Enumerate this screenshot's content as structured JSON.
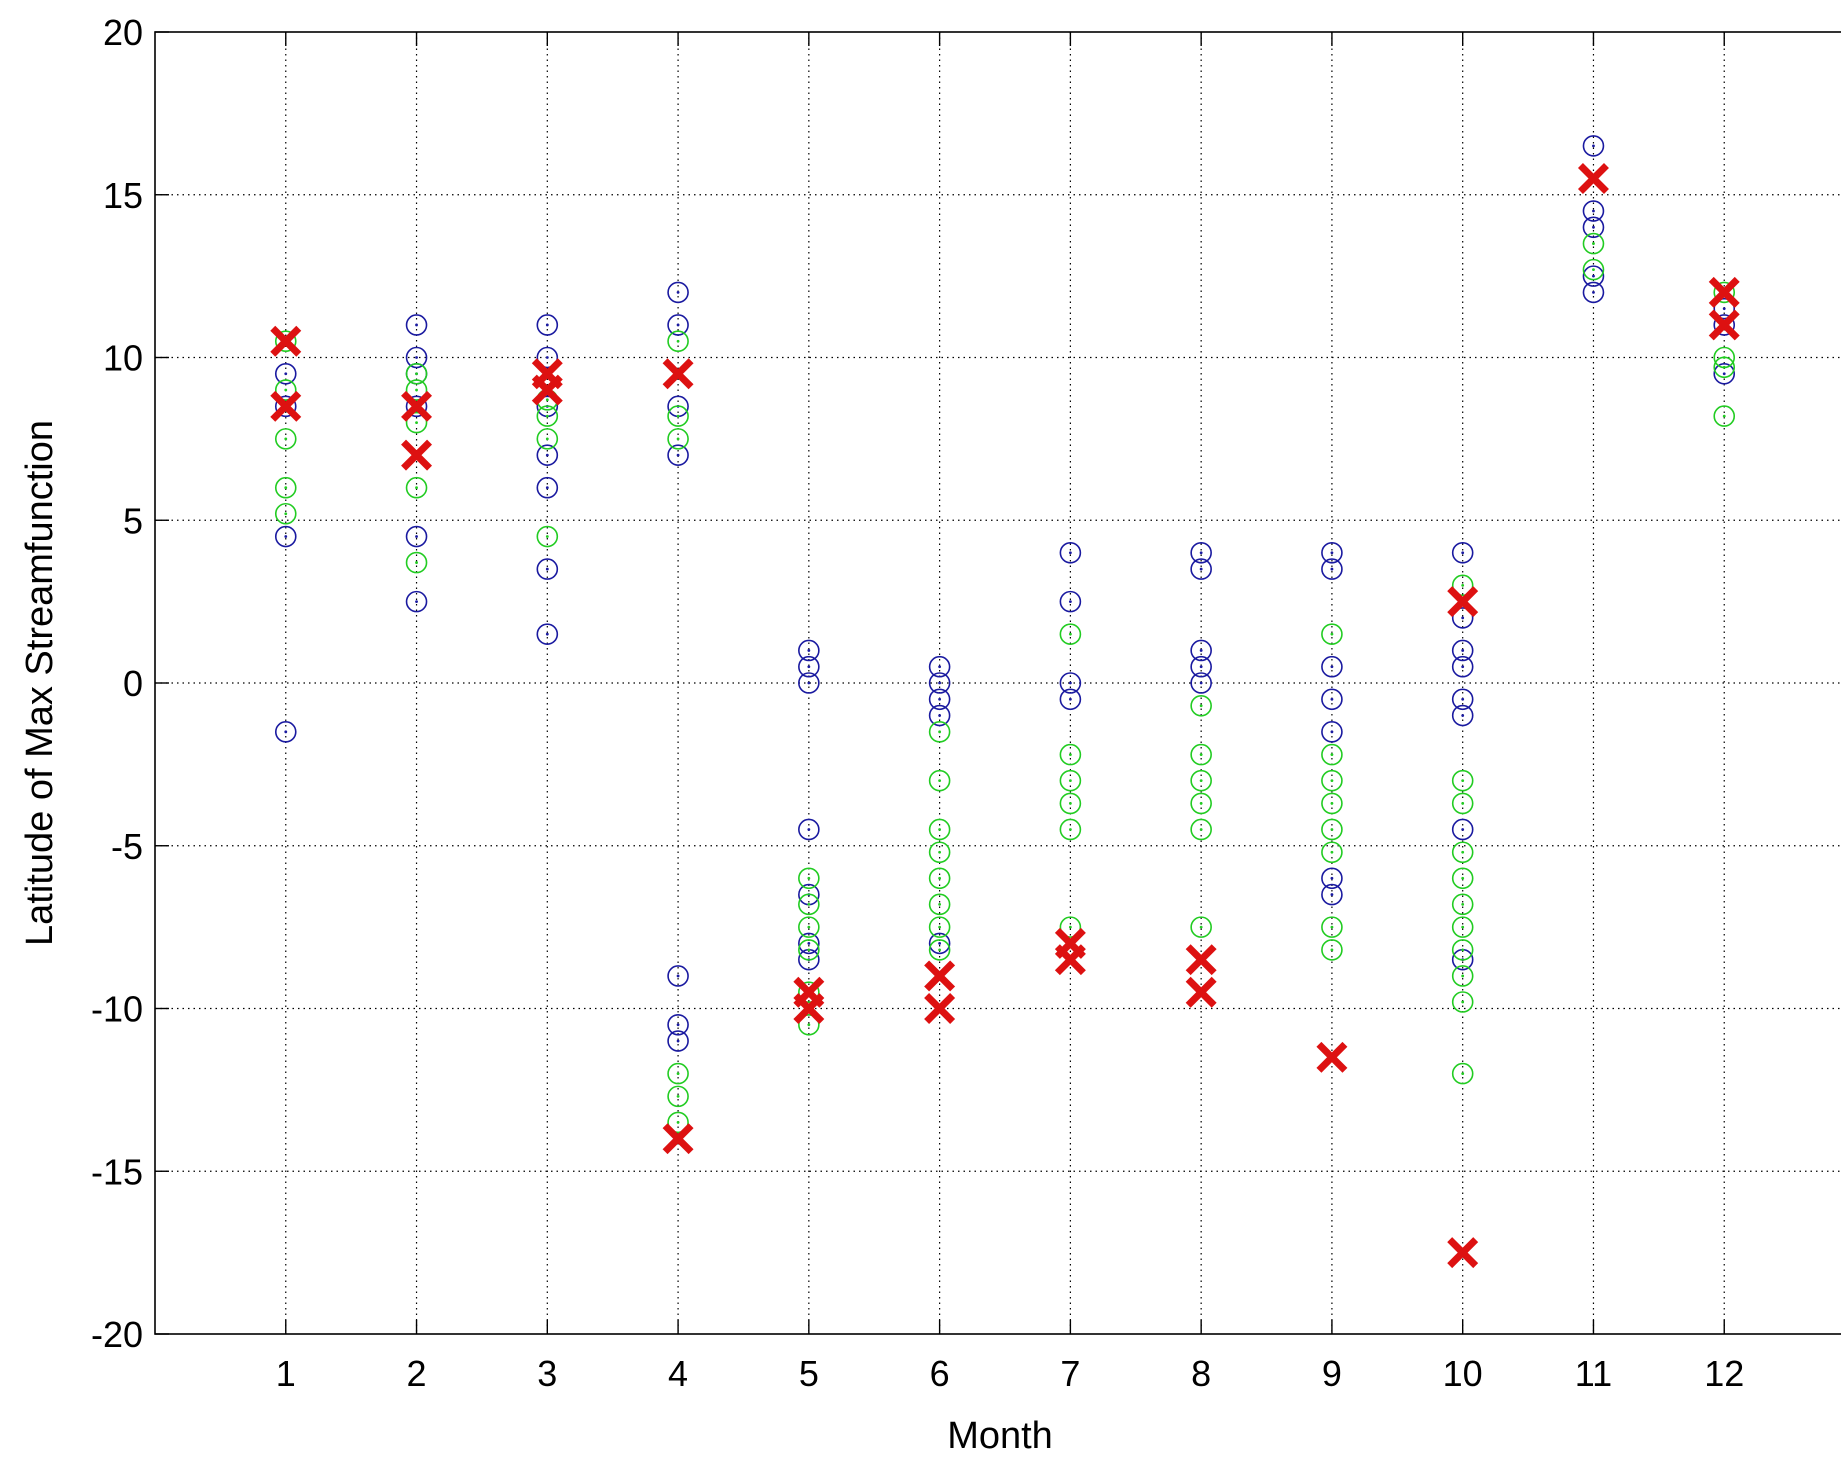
{
  "chart_data": {
    "type": "scatter",
    "title": "",
    "xlabel": "Month",
    "ylabel": "Latitude of Max Streamfunction",
    "xlim": [
      0,
      13
    ],
    "ylim": [
      -20,
      20
    ],
    "xticks": [
      1,
      2,
      3,
      4,
      5,
      6,
      7,
      8,
      9,
      10,
      11,
      12
    ],
    "yticks": [
      -20,
      -15,
      -10,
      -5,
      0,
      5,
      10,
      15,
      20
    ],
    "grid": true,
    "legend": "none",
    "series": [
      {
        "marker": "circle",
        "color": "#1a1aa0",
        "points": [
          [
            1,
            -1.5
          ],
          [
            1,
            4.5
          ],
          [
            1,
            8.5
          ],
          [
            1,
            9.5
          ],
          [
            2,
            2.5
          ],
          [
            2,
            4.5
          ],
          [
            2,
            8.5
          ],
          [
            2,
            9.5
          ],
          [
            2,
            10
          ],
          [
            2,
            11
          ],
          [
            3,
            1.5
          ],
          [
            3,
            3.5
          ],
          [
            3,
            6
          ],
          [
            3,
            7
          ],
          [
            3,
            8.5
          ],
          [
            3,
            10
          ],
          [
            3,
            11
          ],
          [
            4,
            -11
          ],
          [
            4,
            -10.5
          ],
          [
            4,
            -9
          ],
          [
            4,
            7
          ],
          [
            4,
            8.5
          ],
          [
            4,
            11
          ],
          [
            4,
            12
          ],
          [
            5,
            -8.5
          ],
          [
            5,
            -8
          ],
          [
            5,
            -6.5
          ],
          [
            5,
            -4.5
          ],
          [
            5,
            0
          ],
          [
            5,
            0.5
          ],
          [
            5,
            1
          ],
          [
            6,
            -8
          ],
          [
            6,
            -1
          ],
          [
            6,
            -0.5
          ],
          [
            6,
            0
          ],
          [
            6,
            0.5
          ],
          [
            7,
            -0.5
          ],
          [
            7,
            0
          ],
          [
            7,
            2.5
          ],
          [
            7,
            4
          ],
          [
            8,
            0
          ],
          [
            8,
            0.5
          ],
          [
            8,
            1
          ],
          [
            8,
            3.5
          ],
          [
            8,
            4
          ],
          [
            9,
            -6.5
          ],
          [
            9,
            -6
          ],
          [
            9,
            -1.5
          ],
          [
            9,
            -0.5
          ],
          [
            9,
            0.5
          ],
          [
            9,
            3.5
          ],
          [
            9,
            4
          ],
          [
            10,
            -8.5
          ],
          [
            10,
            -4.5
          ],
          [
            10,
            -1
          ],
          [
            10,
            -0.5
          ],
          [
            10,
            0.5
          ],
          [
            10,
            1
          ],
          [
            10,
            2
          ],
          [
            10,
            4
          ],
          [
            11,
            12
          ],
          [
            11,
            12.5
          ],
          [
            11,
            14
          ],
          [
            11,
            14.5
          ],
          [
            11,
            16.5
          ],
          [
            12,
            9.5
          ],
          [
            12,
            11
          ],
          [
            12,
            11.5
          ]
        ]
      },
      {
        "marker": "circle",
        "color": "#22cc22",
        "points": [
          [
            1,
            5.2
          ],
          [
            1,
            6
          ],
          [
            1,
            7.5
          ],
          [
            1,
            9
          ],
          [
            1,
            10.5
          ],
          [
            2,
            3.7
          ],
          [
            2,
            6
          ],
          [
            2,
            8
          ],
          [
            2,
            9
          ],
          [
            2,
            9.5
          ],
          [
            3,
            4.5
          ],
          [
            3,
            7.5
          ],
          [
            3,
            8.2
          ],
          [
            3,
            8.7
          ],
          [
            4,
            -13.5
          ],
          [
            4,
            -12.7
          ],
          [
            4,
            -12
          ],
          [
            4,
            7.5
          ],
          [
            4,
            8.2
          ],
          [
            4,
            10.5
          ],
          [
            5,
            -10.5
          ],
          [
            5,
            -9.5
          ],
          [
            5,
            -8.2
          ],
          [
            5,
            -7.5
          ],
          [
            5,
            -6.8
          ],
          [
            5,
            -6
          ],
          [
            6,
            -8.2
          ],
          [
            6,
            -7.5
          ],
          [
            6,
            -6.8
          ],
          [
            6,
            -6
          ],
          [
            6,
            -5.2
          ],
          [
            6,
            -4.5
          ],
          [
            6,
            -3
          ],
          [
            6,
            -1.5
          ],
          [
            7,
            -7.5
          ],
          [
            7,
            -4.5
          ],
          [
            7,
            -3.7
          ],
          [
            7,
            -3
          ],
          [
            7,
            -2.2
          ],
          [
            7,
            1.5
          ],
          [
            8,
            -7.5
          ],
          [
            8,
            -4.5
          ],
          [
            8,
            -3.7
          ],
          [
            8,
            -3
          ],
          [
            8,
            -2.2
          ],
          [
            8,
            -0.7
          ],
          [
            9,
            -8.2
          ],
          [
            9,
            -7.5
          ],
          [
            9,
            -5.2
          ],
          [
            9,
            -4.5
          ],
          [
            9,
            -3.7
          ],
          [
            9,
            -3
          ],
          [
            9,
            -2.2
          ],
          [
            9,
            1.5
          ],
          [
            10,
            -12
          ],
          [
            10,
            -9.8
          ],
          [
            10,
            -9
          ],
          [
            10,
            -8.2
          ],
          [
            10,
            -7.5
          ],
          [
            10,
            -6.8
          ],
          [
            10,
            -6
          ],
          [
            10,
            -5.2
          ],
          [
            10,
            -3.7
          ],
          [
            10,
            -3
          ],
          [
            10,
            3
          ],
          [
            11,
            12.7
          ],
          [
            11,
            13.5
          ],
          [
            12,
            8.2
          ],
          [
            12,
            9.7
          ],
          [
            12,
            10
          ],
          [
            12,
            12
          ]
        ]
      },
      {
        "marker": "x",
        "color": "#dd1111",
        "points": [
          [
            1,
            8.5
          ],
          [
            1,
            10.5
          ],
          [
            2,
            7
          ],
          [
            2,
            8.5
          ],
          [
            3,
            9
          ],
          [
            3,
            9.5
          ],
          [
            4,
            -14
          ],
          [
            4,
            9.5
          ],
          [
            5,
            -10
          ],
          [
            5,
            -9.5
          ],
          [
            6,
            -10
          ],
          [
            6,
            -9
          ],
          [
            7,
            -8.5
          ],
          [
            7,
            -8
          ],
          [
            8,
            -9.5
          ],
          [
            8,
            -8.5
          ],
          [
            9,
            -11.5
          ],
          [
            10,
            -17.5
          ],
          [
            10,
            2.5
          ],
          [
            11,
            15.5
          ],
          [
            12,
            11
          ],
          [
            12,
            12
          ]
        ]
      }
    ]
  }
}
